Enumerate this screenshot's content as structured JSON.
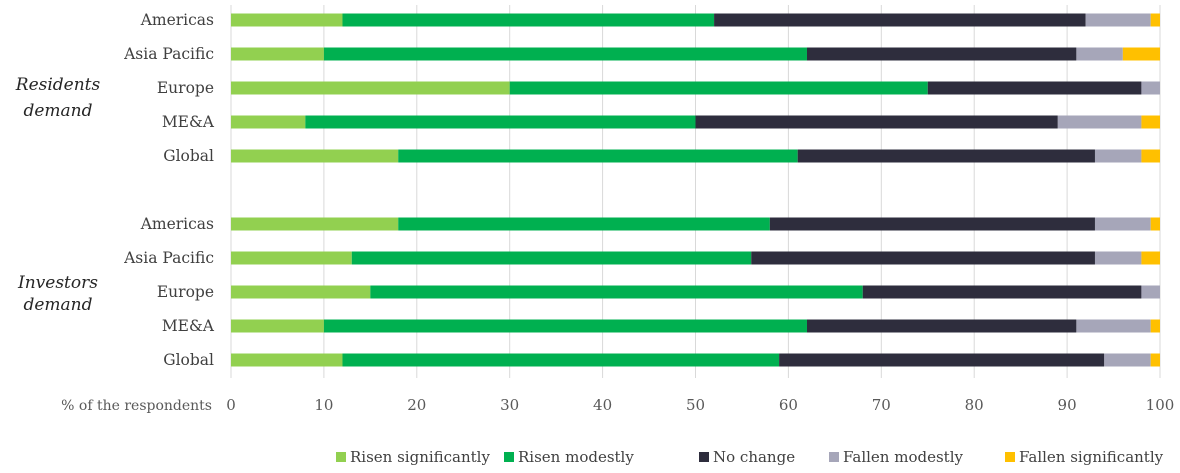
{
  "chart_data": {
    "type": "bar",
    "orientation": "horizontal",
    "stacked": true,
    "xlabel": "% of the respondents",
    "xlim": [
      0,
      100
    ],
    "xticks": [
      0,
      10,
      20,
      30,
      40,
      50,
      60,
      70,
      80,
      90,
      100
    ],
    "grid": "vertical",
    "legend_position": "bottom-right",
    "groups": [
      {
        "label": [
          "Residents",
          "demand"
        ],
        "categories": [
          "Americas",
          "Asia Pacific",
          "Europe",
          "ME&A",
          "Global"
        ]
      },
      {
        "label": [
          "Investors",
          "demand"
        ],
        "categories": [
          "Americas",
          "Asia Pacific",
          "Europe",
          "ME&A",
          "Global"
        ]
      }
    ],
    "series": [
      {
        "name": "Risen significantly",
        "color": "#92d050",
        "values": [
          [
            12,
            10,
            30,
            8,
            18
          ],
          [
            18,
            13,
            15,
            10,
            12
          ]
        ]
      },
      {
        "name": "Risen modestly",
        "color": "#00b050",
        "values": [
          [
            40,
            52,
            45,
            42,
            43
          ],
          [
            40,
            43,
            53,
            52,
            47
          ]
        ]
      },
      {
        "name": "No change",
        "color": "#2e2d3d",
        "values": [
          [
            40,
            29,
            23,
            39,
            32
          ],
          [
            35,
            37,
            30,
            29,
            35
          ]
        ]
      },
      {
        "name": "Fallen modestly",
        "color": "#a6a6b9",
        "values": [
          [
            7,
            5,
            2,
            9,
            5
          ],
          [
            6,
            5,
            2,
            8,
            5
          ]
        ]
      },
      {
        "name": "Fallen significantly",
        "color": "#ffc000",
        "values": [
          [
            1,
            4,
            0,
            2,
            2
          ],
          [
            1,
            2,
            0,
            1,
            1
          ]
        ]
      }
    ]
  }
}
